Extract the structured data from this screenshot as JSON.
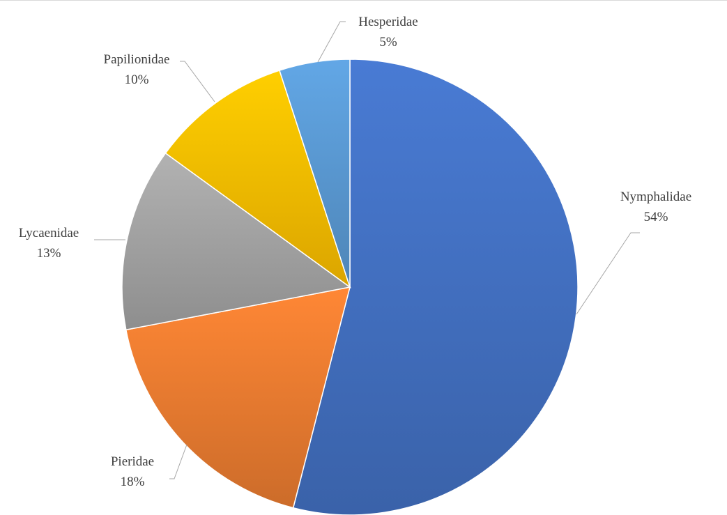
{
  "chart_data": {
    "type": "pie",
    "title": "",
    "slices": [
      {
        "label": "Nymphalidae",
        "value": 54,
        "display": "54%",
        "color": "#4472C4"
      },
      {
        "label": "Pieridae",
        "value": 18,
        "display": "18%",
        "color": "#ED7D31"
      },
      {
        "label": "Lycaenidae",
        "value": 13,
        "display": "13%",
        "color": "#A5A5A5"
      },
      {
        "label": "Papilionidae",
        "value": 10,
        "display": "10%",
        "color": "#FFC000"
      },
      {
        "label": "Hesperidae",
        "value": 5,
        "display": "5%",
        "color": "#5B9BD5"
      }
    ],
    "start_angle": "12 o'clock",
    "direction": "clockwise",
    "legend": "none",
    "data_labels": "outside with leader lines"
  }
}
